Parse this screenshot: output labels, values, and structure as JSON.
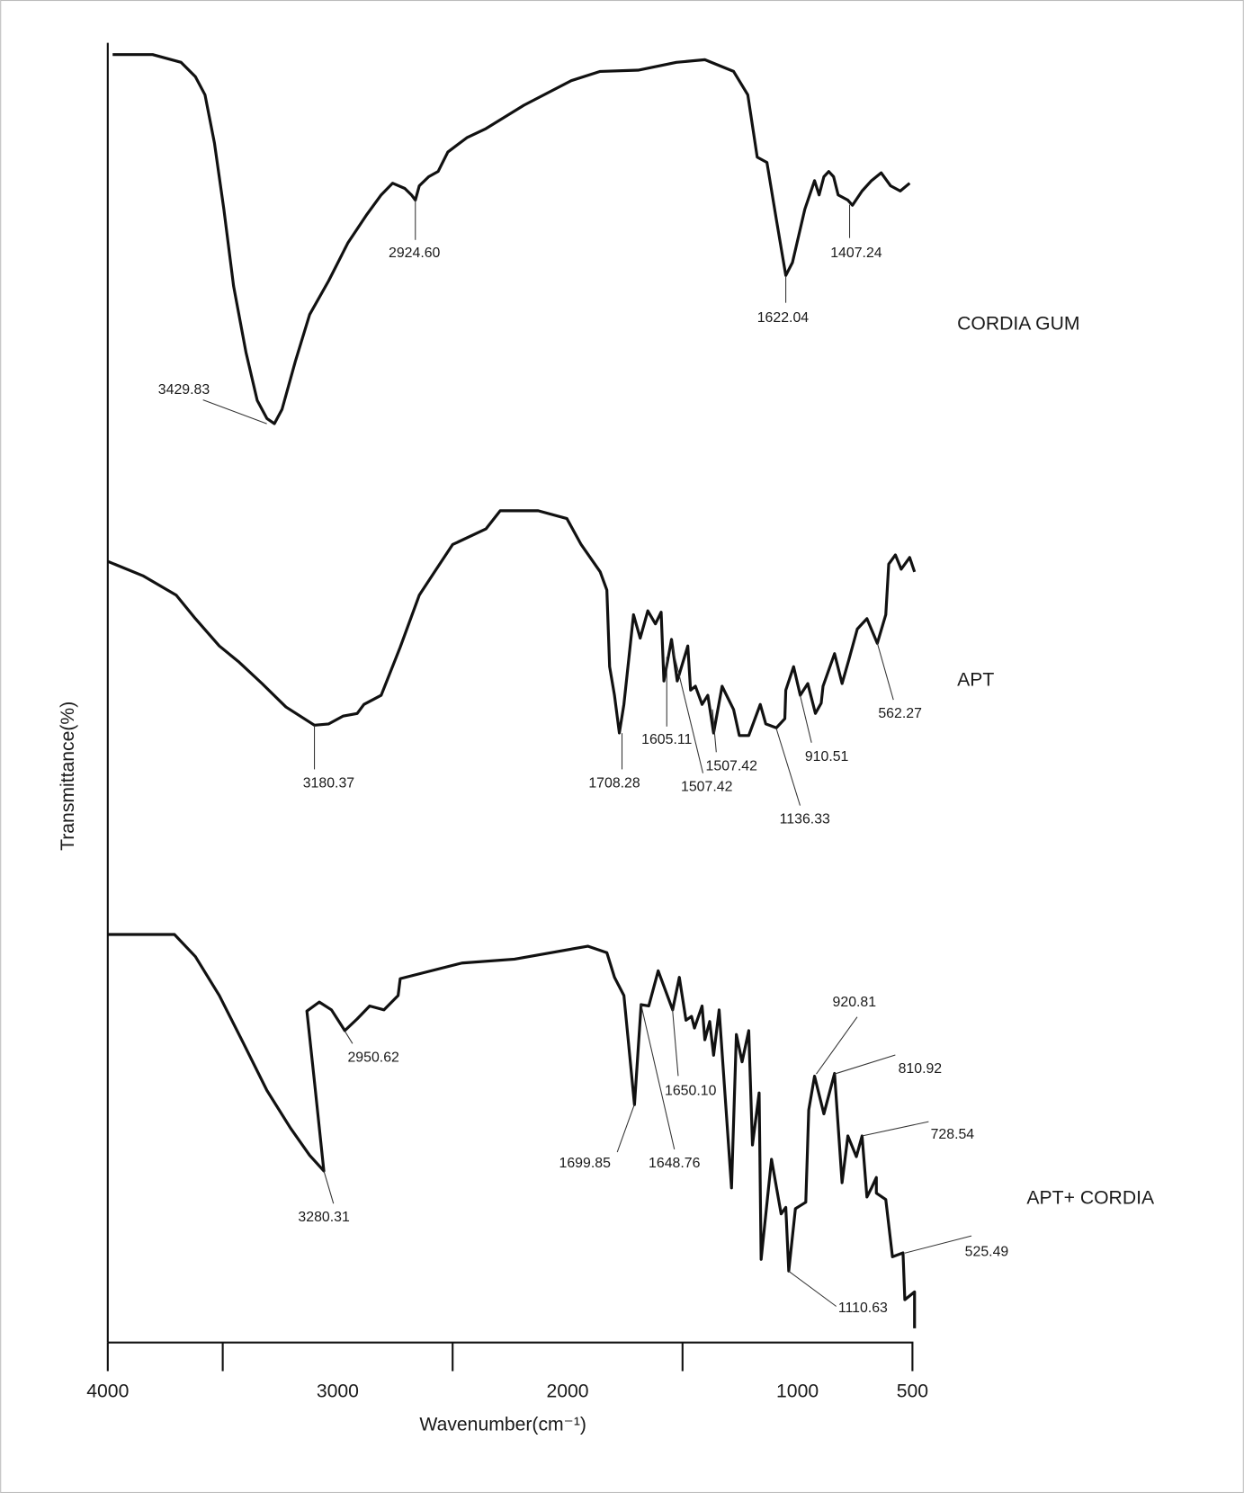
{
  "chart_data": {
    "type": "line",
    "y_label": "Transmittance(%)",
    "x_label": "Wavenumber(cm⁻¹)",
    "xlim": [
      4000,
      500
    ],
    "ylim": [
      0,
      100
    ],
    "xticks": [
      4000,
      3000,
      2000,
      1000,
      500
    ],
    "xtick_marks": [
      4000,
      3500,
      2500,
      1500,
      500
    ],
    "color": "#111111",
    "series": [
      {
        "name": "CORDIA GUM",
        "x": [
          3979,
          3805,
          3681,
          3619,
          3577,
          3536,
          3495,
          3453,
          3399,
          3350,
          3308,
          3275,
          3242,
          3184,
          3122,
          3039,
          2956,
          2873,
          2811,
          2761,
          2708,
          2679,
          2662,
          2645,
          2604,
          2563,
          2521,
          2438,
          2355,
          2190,
          1983,
          1858,
          1693,
          1527,
          1403,
          1278,
          1216,
          1175,
          1133,
          1092,
          1051,
          1022,
          968,
          926,
          906,
          885,
          864,
          843,
          823,
          781,
          761,
          719,
          678,
          636,
          595,
          553,
          512
        ],
        "values": [
          99.1,
          99.1,
          98.5,
          97.4,
          96.0,
          92.3,
          87.2,
          81.3,
          76.2,
          72.5,
          71.1,
          70.7,
          71.8,
          75.5,
          79.1,
          81.7,
          84.6,
          86.8,
          88.3,
          89.2,
          88.8,
          88.3,
          87.9,
          89.0,
          89.7,
          90.1,
          91.6,
          92.7,
          93.4,
          95.2,
          97.1,
          97.8,
          97.9,
          98.5,
          98.7,
          97.8,
          96.0,
          91.2,
          90.8,
          86.4,
          82.1,
          83.1,
          87.2,
          89.4,
          88.3,
          89.7,
          90.1,
          89.7,
          88.3,
          87.9,
          87.5,
          88.6,
          89.4,
          90.0,
          89.0,
          88.6,
          89.2
        ],
        "peak_labels": [
          "3429.83",
          "2924.60",
          "1622.04",
          "1407.24"
        ]
      },
      {
        "name": "APT",
        "x": [
          4000,
          3847,
          3702,
          3619,
          3515,
          3432,
          3329,
          3225,
          3101,
          3039,
          2977,
          2915,
          2886,
          2811,
          2728,
          2645,
          2571,
          2500,
          2355,
          2293,
          2128,
          2003,
          1941,
          1858,
          1829,
          1817,
          1796,
          1775,
          1755,
          1713,
          1684,
          1651,
          1618,
          1593,
          1581,
          1548,
          1523,
          1477,
          1465,
          1444,
          1415,
          1390,
          1365,
          1328,
          1278,
          1253,
          1212,
          1162,
          1138,
          1092,
          1055,
          1051,
          1017,
          988,
          955,
          922,
          897,
          889,
          839,
          806,
          777,
          740,
          698,
          653,
          616,
          603,
          574,
          549,
          512,
          491
        ],
        "values": [
          60.1,
          59.0,
          57.5,
          55.7,
          53.6,
          52.4,
          50.7,
          48.9,
          47.5,
          47.6,
          48.2,
          48.4,
          49.1,
          49.8,
          53.5,
          57.5,
          59.5,
          61.4,
          62.6,
          64.0,
          64.0,
          63.4,
          61.4,
          59.3,
          57.9,
          52.0,
          49.8,
          46.9,
          49.1,
          56.0,
          54.2,
          56.3,
          55.3,
          56.2,
          50.9,
          54.1,
          50.9,
          53.6,
          50.2,
          50.5,
          49.1,
          49.8,
          46.9,
          50.5,
          48.7,
          46.7,
          46.7,
          49.1,
          47.6,
          47.3,
          48.0,
          50.2,
          52.0,
          49.8,
          50.7,
          48.4,
          49.2,
          50.5,
          53.0,
          50.7,
          52.5,
          54.9,
          55.7,
          53.8,
          56.0,
          59.9,
          60.6,
          59.5,
          60.4,
          59.3
        ],
        "peak_labels": [
          "3180.37",
          "1708.28",
          "1605.11",
          "1507.42",
          "1507.42",
          "1136.33",
          "910.51",
          "562.27"
        ]
      },
      {
        "name": "APT+ CORDIA",
        "x": [
          4000,
          3710,
          3619,
          3515,
          3412,
          3308,
          3205,
          3122,
          3060,
          3101,
          3134,
          3080,
          3027,
          2969,
          2915,
          2861,
          2799,
          2737,
          2728,
          2459,
          2231,
          1912,
          1829,
          1796,
          1755,
          1709,
          1680,
          1647,
          1606,
          1543,
          1514,
          1485,
          1461,
          1448,
          1415,
          1403,
          1382,
          1365,
          1341,
          1287,
          1266,
          1241,
          1212,
          1196,
          1167,
          1158,
          1113,
          1071,
          1051,
          1038,
          1009,
          964,
          951,
          926,
          885,
          839,
          806,
          781,
          744,
          719,
          698,
          678,
          657,
          657,
          616,
          587,
          541,
          533,
          491,
          491
        ],
        "values": [
          31.4,
          31.4,
          29.7,
          26.7,
          23.1,
          19.4,
          16.5,
          14.4,
          13.2,
          20.1,
          25.5,
          26.2,
          25.6,
          24.0,
          24.9,
          25.9,
          25.6,
          26.7,
          28.0,
          29.2,
          29.5,
          30.5,
          30.0,
          28.1,
          26.7,
          18.3,
          26.0,
          25.9,
          28.6,
          25.6,
          28.1,
          24.8,
          25.1,
          24.2,
          25.9,
          23.3,
          24.7,
          22.1,
          25.6,
          11.9,
          23.7,
          21.6,
          24.0,
          15.2,
          19.2,
          6.4,
          14.1,
          9.9,
          10.4,
          5.5,
          10.3,
          10.8,
          17.9,
          20.5,
          17.6,
          20.7,
          12.3,
          15.9,
          14.3,
          15.9,
          11.2,
          11.9,
          12.7,
          11.5,
          11.0,
          6.6,
          6.9,
          3.3,
          3.9,
          1.1
        ],
        "peak_labels": [
          "3280.31",
          "2950.62",
          "1699.85",
          "1648.76",
          "1650.10",
          "920.81",
          "810.92",
          "728.54",
          "525.49",
          "1110.63"
        ]
      }
    ]
  }
}
